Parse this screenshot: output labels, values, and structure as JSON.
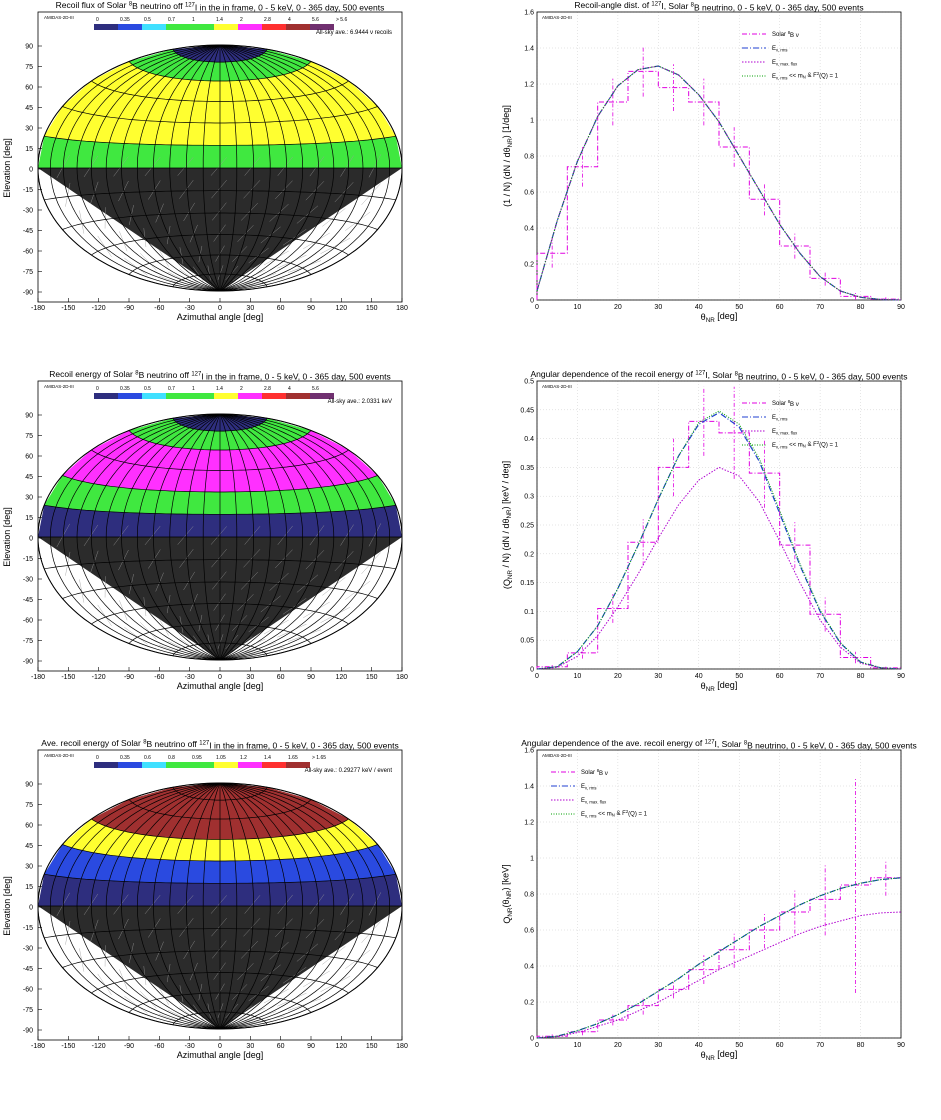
{
  "colors": {
    "band_dark": "#2b2b2b",
    "grid": "#000000",
    "series_solar": "#e000e0",
    "series_rms": "#1f3fd0",
    "series_maxflux": "#b000d0",
    "series_rms_limit": "#00a000",
    "annotation_text": "#2f2f8f",
    "tick_grid": "#cccccc"
  },
  "chart_data": [
    {
      "type": "heatmap",
      "projection": "hammer-aitoff",
      "title_parts": [
        "Recoil flux of Solar ",
        "8",
        "B neutrino off ",
        "127",
        "I in the in frame, 0 - 5 keV, 0 - 365 day, 500 events"
      ],
      "xlabel": "Azimuthal angle [deg]",
      "ylabel": "Elevation [deg]",
      "tag": "AMIDAS-2D-III",
      "annotation": "All-sky ave.: 6.9444 ν recoils",
      "x_ticks": [
        "-180",
        "-150",
        "-120",
        "-90",
        "-60",
        "-30",
        "0",
        "30",
        "60",
        "90",
        "120",
        "150",
        "180"
      ],
      "y_ticks": [
        "90",
        "75",
        "60",
        "45",
        "30",
        "15",
        "0",
        "-15",
        "-30",
        "-45",
        "-60",
        "-75",
        "-90"
      ],
      "scale": {
        "labels": [
          "0",
          "0.35",
          "0.5",
          "0.7",
          "1",
          "1.4",
          "2",
          "2.8",
          "4",
          "5.6",
          "> 5.6"
        ],
        "colors": [
          "#2e2e7e",
          "#2a4ae0",
          "#40e0ff",
          "#40e840",
          "#40e840",
          "#ffff30",
          "#ff30ff",
          "#ff3030",
          "#a03030",
          "#703070"
        ]
      },
      "bands": [
        {
          "from": 75,
          "to": 90,
          "color": "#2e2e7e"
        },
        {
          "from": 60,
          "to": 75,
          "color": "#40e840"
        },
        {
          "from": 45,
          "to": 60,
          "color": "#ffff30"
        },
        {
          "from": 30,
          "to": 45,
          "color": "#ffff30"
        },
        {
          "from": 15,
          "to": 30,
          "color": "#ffff30"
        },
        {
          "from": 0,
          "to": 15,
          "color": "#40e840"
        },
        {
          "from": -90,
          "to": 0,
          "color": "#2b2b2b"
        }
      ]
    },
    {
      "type": "line",
      "title_parts": [
        "Recoil-angle dist. of ",
        "127",
        "I, Solar ",
        "8",
        "B neutrino, 0 - 5 keV, 0 - 365 day, 500 events"
      ],
      "xlabel_parts": [
        "θ",
        "NR",
        " [deg]"
      ],
      "ylabel_parts": [
        "(1 / N) (dN / dθ",
        "NR",
        ") [1/deg]"
      ],
      "tag": "AMIDAS-2D-III",
      "xlim": [
        0,
        90
      ],
      "ylim": [
        0,
        1.6
      ],
      "x_ticks": [
        0,
        10,
        20,
        30,
        40,
        50,
        60,
        70,
        80,
        90
      ],
      "y_ticks": [
        0,
        0.2,
        0.4,
        0.6,
        0.8,
        1,
        1.2,
        1.4,
        1.6
      ],
      "legend_position": "top-right",
      "legend": [
        {
          "parts": [
            "Solar ",
            "8",
            "B ν"
          ],
          "style": "dashdot-magenta"
        },
        {
          "parts": [
            "E",
            "ν, rms",
            ""
          ],
          "style": "dashdot-blue"
        },
        {
          "parts": [
            "E",
            "ν, max. flux",
            ""
          ],
          "style": "dotted-purple"
        },
        {
          "parts": [
            "E",
            "ν, rms",
            " << m",
            "N",
            " & F",
            "2",
            "(Q) = 1"
          ],
          "style": "dotted-green"
        }
      ],
      "histogram": {
        "edges": [
          0,
          7.5,
          15,
          22.5,
          30,
          37.5,
          45,
          52.5,
          60,
          67.5,
          75,
          82.5,
          90
        ],
        "values": [
          0.26,
          0.74,
          1.1,
          1.27,
          1.18,
          1.1,
          0.85,
          0.56,
          0.3,
          0.12,
          0.02,
          0.005
        ],
        "errors": [
          0.08,
          0.11,
          0.13,
          0.14,
          0.13,
          0.13,
          0.11,
          0.09,
          0.07,
          0.04,
          0.02,
          0.01
        ]
      },
      "series": [
        {
          "name": "E_ν, rms",
          "x": [
            0,
            5,
            10,
            15,
            20,
            25,
            30,
            35,
            40,
            45,
            50,
            55,
            60,
            65,
            70,
            75,
            80,
            85,
            90
          ],
          "y": [
            0.05,
            0.44,
            0.77,
            1.02,
            1.19,
            1.28,
            1.3,
            1.25,
            1.14,
            0.99,
            0.8,
            0.61,
            0.42,
            0.26,
            0.13,
            0.05,
            0.015,
            0.003,
            0
          ]
        },
        {
          "name": "E_ν, max. flux",
          "x": [
            0,
            5,
            10,
            15,
            20,
            25,
            30,
            35,
            40,
            45,
            50,
            55,
            60,
            65,
            70,
            75,
            80,
            85,
            90
          ],
          "y": [
            0.05,
            0.44,
            0.77,
            1.02,
            1.19,
            1.28,
            1.3,
            1.25,
            1.14,
            0.99,
            0.8,
            0.61,
            0.42,
            0.26,
            0.13,
            0.05,
            0.015,
            0.003,
            0
          ]
        },
        {
          "name": "E_ν, rms << m_N & F²(Q) = 1",
          "x": [
            0,
            5,
            10,
            15,
            20,
            25,
            30,
            35,
            40,
            45,
            50,
            55,
            60,
            65,
            70,
            75,
            80,
            85,
            90
          ],
          "y": [
            0.05,
            0.44,
            0.77,
            1.02,
            1.19,
            1.28,
            1.3,
            1.25,
            1.14,
            0.99,
            0.8,
            0.61,
            0.42,
            0.26,
            0.13,
            0.05,
            0.015,
            0.003,
            0
          ]
        }
      ]
    },
    {
      "type": "heatmap",
      "projection": "hammer-aitoff",
      "title_parts": [
        "Recoil energy of Solar ",
        "8",
        "B neutrino off ",
        "127",
        "I in the in frame, 0 - 5 keV, 0 - 365 day, 500 events"
      ],
      "xlabel": "Azimuthal angle [deg]",
      "ylabel": "Elevation [deg]",
      "tag": "AMIDAS-2D-III",
      "annotation": "All-sky ave.: 2.0331 keV",
      "x_ticks": [
        "-180",
        "-150",
        "-120",
        "-90",
        "-60",
        "-30",
        "0",
        "30",
        "60",
        "90",
        "120",
        "150",
        "180"
      ],
      "y_ticks": [
        "90",
        "75",
        "60",
        "45",
        "30",
        "15",
        "0",
        "-15",
        "-30",
        "-45",
        "-60",
        "-75",
        "-90"
      ],
      "scale": {
        "labels": [
          "0",
          "0.35",
          "0.5",
          "0.7",
          "1",
          "1.4",
          "2",
          "2.8",
          "4",
          "5.6"
        ],
        "colors": [
          "#2e2e7e",
          "#2a4ae0",
          "#40e0ff",
          "#40e840",
          "#40e840",
          "#ffff30",
          "#ff30ff",
          "#ff3030",
          "#a03030",
          "#703070"
        ]
      },
      "bands": [
        {
          "from": 75,
          "to": 90,
          "color": "#2e2e7e"
        },
        {
          "from": 60,
          "to": 75,
          "color": "#40e840"
        },
        {
          "from": 45,
          "to": 60,
          "color": "#ff30ff"
        },
        {
          "from": 30,
          "to": 45,
          "color": "#ff30ff"
        },
        {
          "from": 15,
          "to": 30,
          "color": "#40e840"
        },
        {
          "from": 0,
          "to": 15,
          "color": "#2e2e7e"
        },
        {
          "from": -90,
          "to": 0,
          "color": "#2b2b2b"
        }
      ]
    },
    {
      "type": "line",
      "title_parts": [
        "Angular dependence of the recoil energy of ",
        "127",
        "I, Solar ",
        "8",
        "B neutrino, 0 - 5 keV, 0 - 365 day, 500 events"
      ],
      "xlabel_parts": [
        "θ",
        "NR",
        " [deg]"
      ],
      "ylabel_parts": [
        "(Q",
        "NR",
        " / N) (dN / dθ",
        "NR",
        ") [keV / deg]"
      ],
      "tag": "AMIDAS-2D-III",
      "xlim": [
        0,
        90
      ],
      "ylim": [
        0,
        0.5
      ],
      "x_ticks": [
        0,
        10,
        20,
        30,
        40,
        50,
        60,
        70,
        80,
        90
      ],
      "y_ticks": [
        0,
        0.05,
        0.1,
        0.15,
        0.2,
        0.25,
        0.3,
        0.35,
        0.4,
        0.45,
        0.5
      ],
      "legend_position": "top-right",
      "legend": [
        {
          "parts": [
            "Solar ",
            "8",
            "B ν"
          ],
          "style": "dashdot-magenta"
        },
        {
          "parts": [
            "E",
            "ν, rms",
            ""
          ],
          "style": "dashdot-blue"
        },
        {
          "parts": [
            "E",
            "ν, max. flux",
            ""
          ],
          "style": "dotted-purple"
        },
        {
          "parts": [
            "E",
            "ν, rms",
            " << m",
            "N",
            " & F",
            "2",
            "(Q) = 1"
          ],
          "style": "dotted-green"
        }
      ],
      "histogram": {
        "edges": [
          0,
          7.5,
          15,
          22.5,
          30,
          37.5,
          45,
          52.5,
          60,
          67.5,
          75,
          82.5,
          90
        ],
        "values": [
          0.004,
          0.028,
          0.105,
          0.22,
          0.35,
          0.43,
          0.41,
          0.34,
          0.215,
          0.095,
          0.02,
          0.002
        ],
        "errors": [
          0.004,
          0.01,
          0.025,
          0.04,
          0.05,
          0.06,
          0.08,
          0.06,
          0.04,
          0.03,
          0.01,
          0.002
        ]
      },
      "series": [
        {
          "name": "E_ν, rms",
          "x": [
            0,
            5,
            10,
            15,
            20,
            25,
            30,
            35,
            40,
            45,
            50,
            55,
            60,
            65,
            70,
            75,
            80,
            85,
            90
          ],
          "y": [
            0,
            0.004,
            0.03,
            0.075,
            0.14,
            0.215,
            0.295,
            0.37,
            0.425,
            0.445,
            0.42,
            0.36,
            0.27,
            0.18,
            0.1,
            0.045,
            0.012,
            0.002,
            0
          ]
        },
        {
          "name": "E_ν, max. flux",
          "x": [
            0,
            5,
            10,
            15,
            20,
            25,
            30,
            35,
            40,
            45,
            50,
            55,
            60,
            65,
            70,
            75,
            80,
            85,
            90
          ],
          "y": [
            0,
            0.003,
            0.022,
            0.058,
            0.108,
            0.165,
            0.227,
            0.285,
            0.328,
            0.35,
            0.335,
            0.29,
            0.222,
            0.15,
            0.085,
            0.038,
            0.01,
            0.002,
            0
          ]
        },
        {
          "name": "E_ν, rms << m_N & F²(Q) = 1",
          "x": [
            0,
            5,
            10,
            15,
            20,
            25,
            30,
            35,
            40,
            45,
            50,
            55,
            60,
            65,
            70,
            75,
            80,
            85,
            90
          ],
          "y": [
            0,
            0.004,
            0.03,
            0.075,
            0.14,
            0.215,
            0.295,
            0.37,
            0.428,
            0.448,
            0.425,
            0.365,
            0.275,
            0.183,
            0.102,
            0.046,
            0.012,
            0.002,
            0
          ]
        }
      ]
    },
    {
      "type": "heatmap",
      "projection": "hammer-aitoff",
      "title_parts": [
        "Ave. recoil energy of Solar ",
        "8",
        "B neutrino off ",
        "127",
        "I in the in frame, 0 - 5 keV, 0 - 365 day, 500 events"
      ],
      "xlabel": "Azimuthal angle [deg]",
      "ylabel": "Elevation [deg]",
      "tag": "AMIDAS-2D-III",
      "annotation": "All-sky ave.: 0.29277 keV / event",
      "x_ticks": [
        "-180",
        "-150",
        "-120",
        "-90",
        "-60",
        "-30",
        "0",
        "30",
        "60",
        "90",
        "120",
        "150",
        "180"
      ],
      "y_ticks": [
        "90",
        "75",
        "60",
        "45",
        "30",
        "15",
        "0",
        "-15",
        "-30",
        "-45",
        "-60",
        "-75",
        "-90"
      ],
      "scale": {
        "labels": [
          "0",
          "0.35",
          "0.6",
          "0.8",
          "0.95",
          "1.05",
          "1.2",
          "1.4",
          "1.65",
          "> 1.65"
        ],
        "colors": [
          "#2e2e7e",
          "#2a4ae0",
          "#40e0ff",
          "#40e840",
          "#40e840",
          "#ffff30",
          "#ff30ff",
          "#ff3030",
          "#a03030"
        ]
      },
      "bands": [
        {
          "from": 75,
          "to": 90,
          "color": "#a03030"
        },
        {
          "from": 60,
          "to": 75,
          "color": "#a03030"
        },
        {
          "from": 45,
          "to": 60,
          "color": "#a03030"
        },
        {
          "from": 30,
          "to": 45,
          "color": "#ffff30"
        },
        {
          "from": 15,
          "to": 30,
          "color": "#2a4ae0"
        },
        {
          "from": 0,
          "to": 15,
          "color": "#2e2e7e"
        },
        {
          "from": -90,
          "to": 0,
          "color": "#2b2b2b"
        }
      ]
    },
    {
      "type": "line",
      "title_parts": [
        "Angular dependence of the ave. recoil energy of ",
        "127",
        "I, Solar ",
        "8",
        "B neutrino, 0 - 5 keV, 0 - 365 day, 500 events"
      ],
      "xlabel_parts": [
        "θ",
        "NR",
        " [deg]"
      ],
      "ylabel_parts": [
        "Q",
        "NR",
        "(θ",
        "NR",
        ") [keV]"
      ],
      "tag": "AMIDAS-2D-III",
      "xlim": [
        0,
        90
      ],
      "ylim": [
        0,
        1.6
      ],
      "x_ticks": [
        0,
        10,
        20,
        30,
        40,
        50,
        60,
        70,
        80,
        90
      ],
      "y_ticks": [
        0,
        0.2,
        0.4,
        0.6,
        0.8,
        1,
        1.2,
        1.4,
        1.6
      ],
      "legend_position": "top-left",
      "legend": [
        {
          "parts": [
            "Solar ",
            "8",
            "B ν"
          ],
          "style": "dashdot-magenta"
        },
        {
          "parts": [
            "E",
            "ν, rms",
            ""
          ],
          "style": "dashdot-blue"
        },
        {
          "parts": [
            "E",
            "ν, max. flux",
            ""
          ],
          "style": "dotted-purple"
        },
        {
          "parts": [
            "E",
            "ν, rms",
            " << m",
            "N",
            " & F",
            "2",
            "(Q) = 1"
          ],
          "style": "dotted-green"
        }
      ],
      "histogram": {
        "edges": [
          0,
          7.5,
          15,
          22.5,
          30,
          37.5,
          45,
          52.5,
          60,
          67.5,
          75,
          82.5,
          90
        ],
        "values": [
          0.01,
          0.035,
          0.1,
          0.18,
          0.27,
          0.38,
          0.49,
          0.6,
          0.7,
          0.77,
          0.85,
          0.89
        ],
        "errors": [
          0.01,
          0.02,
          0.03,
          0.05,
          0.05,
          0.08,
          0.1,
          0.1,
          0.12,
          0.2,
          0.6,
          0.1
        ]
      },
      "series": [
        {
          "name": "E_ν, rms",
          "x": [
            0,
            5,
            10,
            15,
            20,
            25,
            30,
            35,
            40,
            45,
            50,
            55,
            60,
            65,
            70,
            75,
            80,
            85,
            90
          ],
          "y": [
            0,
            0.01,
            0.04,
            0.08,
            0.13,
            0.19,
            0.26,
            0.33,
            0.41,
            0.48,
            0.55,
            0.62,
            0.68,
            0.74,
            0.79,
            0.83,
            0.86,
            0.88,
            0.89
          ]
        },
        {
          "name": "E_ν, max. flux",
          "x": [
            0,
            5,
            10,
            15,
            20,
            25,
            30,
            35,
            40,
            45,
            50,
            55,
            60,
            65,
            70,
            75,
            80,
            85,
            90
          ],
          "y": [
            0,
            0.008,
            0.03,
            0.065,
            0.1,
            0.15,
            0.2,
            0.26,
            0.32,
            0.38,
            0.43,
            0.48,
            0.53,
            0.58,
            0.62,
            0.65,
            0.68,
            0.695,
            0.7
          ]
        },
        {
          "name": "E_ν, rms << m_N & F²(Q) = 1",
          "x": [
            0,
            5,
            10,
            15,
            20,
            25,
            30,
            35,
            40,
            45,
            50,
            55,
            60,
            65,
            70,
            75,
            80,
            85,
            90
          ],
          "y": [
            0,
            0.01,
            0.04,
            0.08,
            0.13,
            0.19,
            0.26,
            0.33,
            0.41,
            0.48,
            0.55,
            0.62,
            0.68,
            0.74,
            0.79,
            0.83,
            0.86,
            0.88,
            0.89
          ]
        }
      ]
    }
  ]
}
